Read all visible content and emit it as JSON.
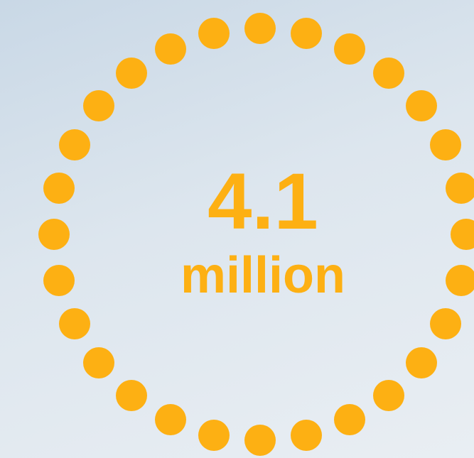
{
  "stat": {
    "value": "4.1",
    "unit": "million"
  },
  "colors": {
    "accent": "#fdb013"
  },
  "ring": {
    "dot_count": 28
  }
}
